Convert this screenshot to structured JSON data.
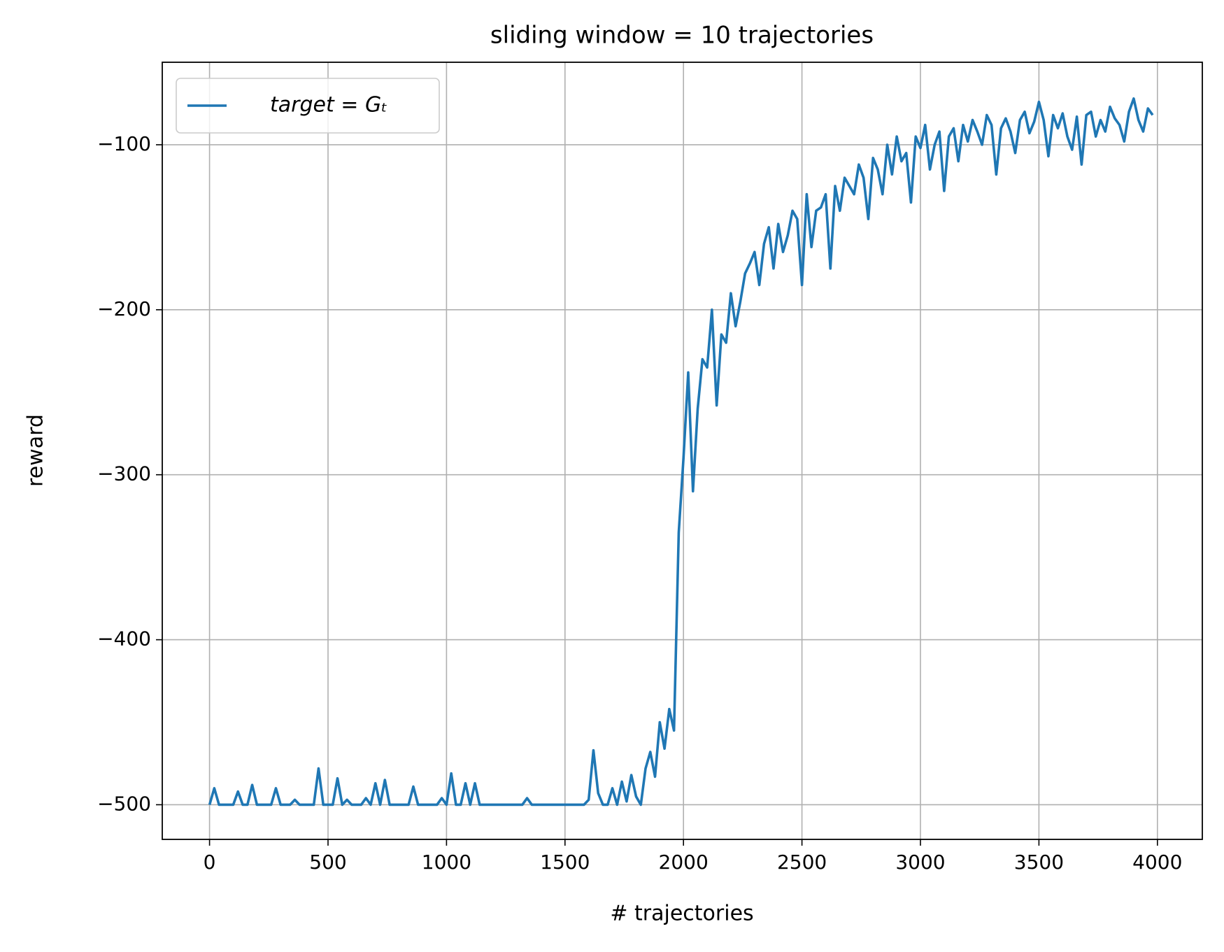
{
  "chart_data": {
    "type": "line",
    "title": "sliding window = 10 trajectories",
    "x_label": "# trajectories",
    "y_label": "reward",
    "xlim": [
      -199.5,
      4189.5
    ],
    "ylim": [
      -521,
      -50
    ],
    "xticks": [
      0,
      500,
      1000,
      1500,
      2000,
      2500,
      3000,
      3500,
      4000
    ],
    "yticks": [
      {
        "value": -100,
        "label": "−100"
      },
      {
        "value": -200,
        "label": "−200"
      },
      {
        "value": -300,
        "label": "−300"
      },
      {
        "value": -400,
        "label": "−400"
      },
      {
        "value": -500,
        "label": "−500"
      }
    ],
    "grid": true,
    "legend": "upper left",
    "x": [
      0,
      20,
      40,
      60,
      80,
      100,
      120,
      140,
      160,
      180,
      200,
      220,
      240,
      260,
      280,
      300,
      320,
      340,
      360,
      380,
      400,
      420,
      440,
      460,
      480,
      500,
      520,
      540,
      560,
      580,
      600,
      620,
      640,
      660,
      680,
      700,
      720,
      740,
      760,
      780,
      800,
      820,
      840,
      860,
      880,
      900,
      920,
      940,
      960,
      980,
      1000,
      1020,
      1040,
      1060,
      1080,
      1100,
      1120,
      1140,
      1160,
      1180,
      1200,
      1220,
      1240,
      1260,
      1280,
      1300,
      1320,
      1340,
      1360,
      1380,
      1400,
      1420,
      1440,
      1460,
      1480,
      1500,
      1520,
      1540,
      1560,
      1580,
      1600,
      1620,
      1640,
      1660,
      1680,
      1700,
      1720,
      1740,
      1760,
      1780,
      1800,
      1820,
      1840,
      1860,
      1880,
      1900,
      1920,
      1940,
      1960,
      1980,
      2000,
      2020,
      2040,
      2060,
      2080,
      2100,
      2120,
      2140,
      2160,
      2180,
      2200,
      2220,
      2240,
      2260,
      2280,
      2300,
      2320,
      2340,
      2360,
      2380,
      2400,
      2420,
      2440,
      2460,
      2480,
      2500,
      2520,
      2540,
      2560,
      2580,
      2600,
      2620,
      2640,
      2660,
      2680,
      2700,
      2720,
      2740,
      2760,
      2780,
      2800,
      2820,
      2840,
      2860,
      2880,
      2900,
      2920,
      2940,
      2960,
      2980,
      3000,
      3020,
      3040,
      3060,
      3080,
      3100,
      3120,
      3140,
      3160,
      3180,
      3200,
      3220,
      3240,
      3260,
      3280,
      3300,
      3320,
      3340,
      3360,
      3380,
      3400,
      3420,
      3440,
      3460,
      3480,
      3500,
      3520,
      3540,
      3560,
      3580,
      3600,
      3620,
      3640,
      3660,
      3680,
      3700,
      3720,
      3740,
      3760,
      3780,
      3800,
      3820,
      3840,
      3860,
      3880,
      3900,
      3920,
      3940,
      3960,
      3980
    ],
    "series": [
      {
        "name": "target = Gₜ",
        "color": "#1f77b4",
        "values": [
          -500,
          -490,
          -500,
          -500,
          -500,
          -500,
          -492,
          -500,
          -500,
          -488,
          -500,
          -500,
          -500,
          -500,
          -490,
          -500,
          -500,
          -500,
          -497,
          -500,
          -500,
          -500,
          -500,
          -478,
          -500,
          -500,
          -500,
          -484,
          -500,
          -497,
          -500,
          -500,
          -500,
          -496,
          -500,
          -487,
          -500,
          -485,
          -500,
          -500,
          -500,
          -500,
          -500,
          -489,
          -500,
          -500,
          -500,
          -500,
          -500,
          -496,
          -500,
          -481,
          -500,
          -500,
          -487,
          -500,
          -487,
          -500,
          -500,
          -500,
          -500,
          -500,
          -500,
          -500,
          -500,
          -500,
          -500,
          -496,
          -500,
          -500,
          -500,
          -500,
          -500,
          -500,
          -500,
          -500,
          -500,
          -500,
          -500,
          -500,
          -497,
          -467,
          -493,
          -500,
          -500,
          -490,
          -500,
          -486,
          -498,
          -482,
          -495,
          -500,
          -478,
          -468,
          -483,
          -450,
          -466,
          -442,
          -455,
          -335,
          -290,
          -238,
          -310,
          -260,
          -230,
          -235,
          -200,
          -258,
          -215,
          -220,
          -190,
          -210,
          -195,
          -178,
          -172,
          -165,
          -185,
          -160,
          -150,
          -175,
          -148,
          -165,
          -155,
          -140,
          -145,
          -185,
          -130,
          -162,
          -140,
          -138,
          -130,
          -175,
          -125,
          -140,
          -120,
          -125,
          -130,
          -112,
          -120,
          -145,
          -108,
          -115,
          -130,
          -100,
          -118,
          -95,
          -110,
          -105,
          -135,
          -95,
          -102,
          -88,
          -115,
          -100,
          -92,
          -128,
          -95,
          -90,
          -110,
          -88,
          -98,
          -85,
          -92,
          -100,
          -82,
          -88,
          -118,
          -90,
          -84,
          -92,
          -105,
          -85,
          -80,
          -93,
          -86,
          -74,
          -85,
          -107,
          -82,
          -90,
          -81,
          -95,
          -103,
          -83,
          -112,
          -82,
          -80,
          -95,
          -85,
          -92,
          -77,
          -84,
          -88,
          -98,
          -80,
          -72,
          -85,
          -92,
          -78,
          -82
        ]
      }
    ]
  }
}
